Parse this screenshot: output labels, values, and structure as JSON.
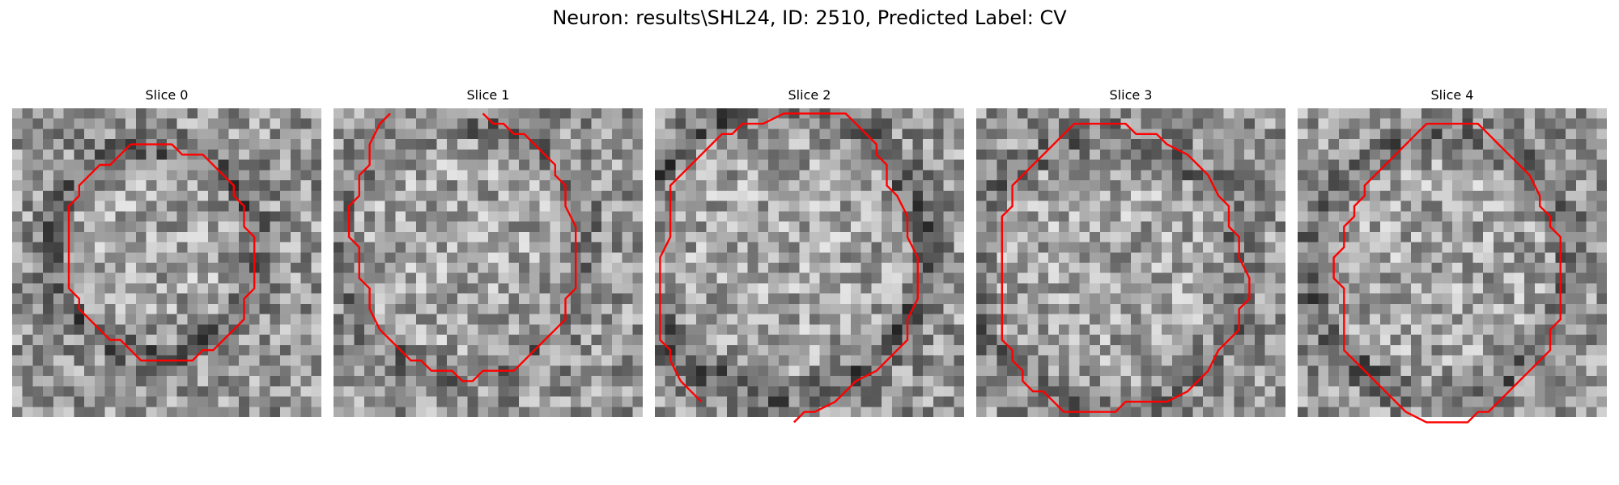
{
  "figure": {
    "title": "Neuron: results\\SHL24, ID: 2510, Predicted Label: CV"
  },
  "panels": [
    {
      "title": "Slice 0",
      "contour": [
        [
          11,
          3
        ],
        [
          15,
          3
        ],
        [
          16,
          4
        ],
        [
          18,
          4
        ],
        [
          20,
          6
        ],
        [
          21,
          7
        ],
        [
          21,
          8
        ],
        [
          22,
          9
        ],
        [
          22,
          11
        ],
        [
          23,
          12
        ],
        [
          23,
          14
        ],
        [
          23,
          17
        ],
        [
          22,
          18
        ],
        [
          22,
          20
        ],
        [
          21,
          21
        ],
        [
          20,
          22
        ],
        [
          19,
          23
        ],
        [
          18,
          23
        ],
        [
          17,
          24
        ],
        [
          16,
          24
        ],
        [
          14,
          24
        ],
        [
          12,
          24
        ],
        [
          11,
          23
        ],
        [
          10,
          22
        ],
        [
          9,
          22
        ],
        [
          8,
          21
        ],
        [
          7,
          20
        ],
        [
          6,
          19
        ],
        [
          6,
          18
        ],
        [
          5,
          17
        ],
        [
          5,
          15
        ],
        [
          5,
          11
        ],
        [
          5,
          9
        ],
        [
          6,
          8
        ],
        [
          6,
          7
        ],
        [
          7,
          6
        ],
        [
          8,
          5
        ],
        [
          9,
          5
        ],
        [
          10,
          4
        ],
        [
          11,
          3
        ]
      ],
      "vignette": 0.55
    },
    {
      "title": "Slice 1",
      "contour": [
        [
          5,
          0
        ],
        [
          4,
          1
        ],
        [
          3,
          3
        ],
        [
          3,
          5
        ],
        [
          2,
          6
        ],
        [
          2,
          8
        ],
        [
          1,
          9
        ],
        [
          1,
          12
        ],
        [
          2,
          13
        ],
        [
          2,
          16
        ],
        [
          3,
          17
        ],
        [
          3,
          19
        ],
        [
          4,
          21
        ],
        [
          5,
          22
        ],
        [
          6,
          23
        ],
        [
          7,
          24
        ],
        [
          8,
          24
        ],
        [
          9,
          25
        ],
        [
          11,
          25
        ],
        [
          12,
          26
        ],
        [
          13,
          26
        ],
        [
          14,
          25
        ],
        [
          17,
          25
        ],
        [
          18,
          24
        ],
        [
          19,
          23
        ],
        [
          20,
          22
        ],
        [
          21,
          21
        ],
        [
          22,
          20
        ],
        [
          22,
          18
        ],
        [
          23,
          17
        ],
        [
          23,
          14
        ],
        [
          23,
          11
        ],
        [
          22,
          9
        ],
        [
          22,
          7
        ],
        [
          21,
          6
        ],
        [
          21,
          5
        ],
        [
          20,
          4
        ],
        [
          19,
          3
        ],
        [
          18,
          2
        ],
        [
          17,
          2
        ],
        [
          16,
          1
        ],
        [
          15,
          1
        ],
        [
          14,
          0
        ]
      ],
      "vignette": 0.35
    },
    {
      "title": "Slice 2",
      "contour": [
        [
          4,
          28
        ],
        [
          3,
          27
        ],
        [
          3,
          27
        ],
        [
          2,
          26
        ],
        [
          1,
          24
        ],
        [
          1,
          23
        ],
        [
          0,
          22
        ],
        [
          0,
          20
        ],
        [
          0,
          18
        ],
        [
          0,
          16
        ],
        [
          0,
          14
        ],
        [
          1,
          12
        ],
        [
          1,
          9
        ],
        [
          1,
          7
        ],
        [
          2,
          6
        ],
        [
          3,
          5
        ],
        [
          4,
          4
        ],
        [
          5,
          3
        ],
        [
          6,
          2
        ],
        [
          7,
          2
        ],
        [
          8,
          1
        ],
        [
          10,
          1
        ],
        [
          12,
          0
        ],
        [
          14,
          0
        ],
        [
          16,
          0
        ],
        [
          18,
          0
        ],
        [
          19,
          1
        ],
        [
          20,
          2
        ],
        [
          21,
          3
        ],
        [
          21,
          4
        ],
        [
          22,
          5
        ],
        [
          22,
          7
        ],
        [
          23,
          8
        ],
        [
          24,
          10
        ],
        [
          24,
          12
        ],
        [
          25,
          14
        ],
        [
          25,
          16
        ],
        [
          25,
          18
        ],
        [
          24,
          20
        ],
        [
          24,
          22
        ],
        [
          23,
          23
        ],
        [
          22,
          24
        ],
        [
          21,
          25
        ],
        [
          19,
          26
        ],
        [
          18,
          27
        ],
        [
          17,
          28
        ],
        [
          15,
          29
        ],
        [
          14,
          29
        ],
        [
          13,
          30
        ]
      ],
      "vignette": 0.6
    },
    {
      "title": "Slice 3",
      "contour": [
        [
          8,
          2
        ],
        [
          9,
          1
        ],
        [
          11,
          1
        ],
        [
          14,
          1
        ],
        [
          15,
          2
        ],
        [
          17,
          2
        ],
        [
          18,
          3
        ],
        [
          20,
          4
        ],
        [
          21,
          5
        ],
        [
          22,
          6
        ],
        [
          23,
          8
        ],
        [
          24,
          9
        ],
        [
          24,
          11
        ],
        [
          25,
          12
        ],
        [
          25,
          14
        ],
        [
          26,
          16
        ],
        [
          26,
          18
        ],
        [
          25,
          19
        ],
        [
          25,
          21
        ],
        [
          24,
          22
        ],
        [
          23,
          23
        ],
        [
          22,
          25
        ],
        [
          21,
          26
        ],
        [
          20,
          27
        ],
        [
          18,
          28
        ],
        [
          17,
          28
        ],
        [
          16,
          28
        ],
        [
          14,
          28
        ],
        [
          13,
          29
        ],
        [
          12,
          29
        ],
        [
          11,
          29
        ],
        [
          10,
          29
        ],
        [
          8,
          29
        ],
        [
          7,
          28
        ],
        [
          6,
          27
        ],
        [
          5,
          27
        ],
        [
          4,
          26
        ],
        [
          4,
          25
        ],
        [
          3,
          24
        ],
        [
          3,
          23
        ],
        [
          2,
          22
        ],
        [
          2,
          20
        ],
        [
          2,
          18
        ],
        [
          2,
          16
        ],
        [
          2,
          14
        ],
        [
          2,
          12
        ],
        [
          2,
          10
        ],
        [
          3,
          9
        ],
        [
          3,
          7
        ],
        [
          4,
          6
        ],
        [
          5,
          5
        ],
        [
          6,
          4
        ],
        [
          7,
          3
        ],
        [
          8,
          2
        ]
      ],
      "vignette": 0.4
    },
    {
      "title": "Slice 4",
      "contour": [
        [
          12,
          1
        ],
        [
          15,
          1
        ],
        [
          17,
          1
        ],
        [
          18,
          2
        ],
        [
          19,
          3
        ],
        [
          20,
          4
        ],
        [
          21,
          5
        ],
        [
          22,
          6
        ],
        [
          23,
          8
        ],
        [
          23,
          9
        ],
        [
          24,
          10
        ],
        [
          24,
          11
        ],
        [
          25,
          12
        ],
        [
          25,
          14
        ],
        [
          25,
          17
        ],
        [
          25,
          20
        ],
        [
          24,
          21
        ],
        [
          24,
          23
        ],
        [
          23,
          24
        ],
        [
          22,
          25
        ],
        [
          21,
          26
        ],
        [
          20,
          27
        ],
        [
          19,
          28
        ],
        [
          18,
          29
        ],
        [
          17,
          29
        ],
        [
          16,
          30
        ],
        [
          14,
          30
        ],
        [
          12,
          30
        ],
        [
          10,
          29
        ],
        [
          9,
          28
        ],
        [
          8,
          27
        ],
        [
          7,
          26
        ],
        [
          6,
          25
        ],
        [
          5,
          24
        ],
        [
          4,
          23
        ],
        [
          4,
          22
        ],
        [
          4,
          19
        ],
        [
          4,
          17
        ],
        [
          3,
          16
        ],
        [
          3,
          14
        ],
        [
          4,
          13
        ],
        [
          4,
          11
        ],
        [
          5,
          10
        ],
        [
          5,
          9
        ],
        [
          6,
          8
        ],
        [
          6,
          7
        ],
        [
          7,
          6
        ],
        [
          8,
          5
        ],
        [
          9,
          4
        ],
        [
          10,
          3
        ],
        [
          11,
          2
        ],
        [
          12,
          1
        ]
      ],
      "vignette": 0.5
    }
  ],
  "colors": {
    "contour": "#ff0000"
  }
}
